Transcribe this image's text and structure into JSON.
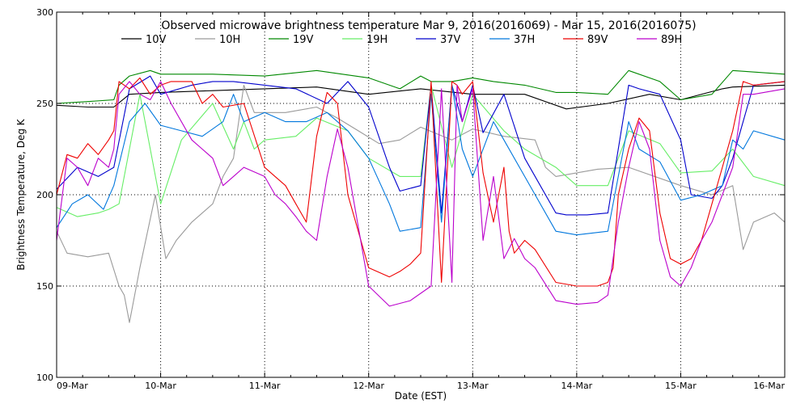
{
  "chart_data": {
    "type": "line",
    "title": "Observed microwave brightness temperature Mar  9, 2016(2016069) - Mar 15, 2016(2016075)",
    "xlabel": "Date (EST)",
    "ylabel": "Brightness Temperature, Deg K",
    "ylim": [
      100,
      300
    ],
    "xlim": [
      0,
      7
    ],
    "y_ticks": [
      100,
      150,
      200,
      250,
      300
    ],
    "y_tick_labels": [
      "100",
      "150",
      "200",
      "250",
      "300"
    ],
    "x_ticks": [
      0,
      1,
      2,
      3,
      4,
      5,
      6,
      7
    ],
    "x_tick_labels": [
      "09-Mar",
      "10-Mar",
      "11-Mar",
      "12-Mar",
      "13-Mar",
      "14-Mar",
      "15-Mar",
      "16-Mar"
    ],
    "grid": true,
    "legend_position": "top",
    "colors": {
      "10V": "#000000",
      "10H": "#9a9a9a",
      "19V": "#008800",
      "19H": "#66ee66",
      "37V": "#0000cc",
      "37H": "#0077dd",
      "89V": "#ee0000",
      "89H": "#bb00cc"
    },
    "series": [
      {
        "name": "10V",
        "color": "#000000",
        "x": [
          0,
          0.3,
          0.55,
          0.7,
          1.0,
          1.5,
          2.0,
          2.5,
          3.0,
          3.5,
          4.0,
          4.5,
          4.9,
          5.3,
          5.7,
          6.0,
          6.4,
          6.5,
          7.0
        ],
        "y": [
          249,
          248,
          248,
          255,
          256,
          257,
          258,
          259,
          255,
          258,
          255,
          255,
          247,
          250,
          255,
          252,
          258,
          259,
          260
        ]
      },
      {
        "name": "10H",
        "color": "#9a9a9a",
        "x": [
          0,
          0.1,
          0.3,
          0.5,
          0.6,
          0.65,
          0.7,
          0.8,
          0.95,
          1.05,
          1.15,
          1.3,
          1.5,
          1.6,
          1.7,
          1.8,
          1.9,
          2.0,
          2.2,
          2.5,
          2.7,
          2.9,
          3.1,
          3.3,
          3.5,
          3.8,
          4.0,
          4.3,
          4.6,
          4.7,
          4.8,
          5.0,
          5.2,
          5.5,
          6.0,
          6.3,
          6.5,
          6.6,
          6.7,
          6.9,
          7.0
        ],
        "y": [
          180,
          168,
          166,
          168,
          150,
          145,
          130,
          160,
          200,
          165,
          175,
          185,
          195,
          210,
          220,
          260,
          245,
          245,
          245,
          248,
          242,
          235,
          228,
          230,
          237,
          230,
          236,
          232,
          230,
          215,
          210,
          212,
          214,
          215,
          205,
          200,
          205,
          170,
          185,
          190,
          185
        ]
      },
      {
        "name": "19V",
        "color": "#008800",
        "x": [
          0,
          0.3,
          0.55,
          0.6,
          0.7,
          0.9,
          1.0,
          1.5,
          2.0,
          2.5,
          3.0,
          3.3,
          3.5,
          3.6,
          3.8,
          4.0,
          4.2,
          4.5,
          4.8,
          5.0,
          5.3,
          5.5,
          5.8,
          6.0,
          6.3,
          6.5,
          7.0
        ],
        "y": [
          250,
          251,
          252,
          260,
          265,
          268,
          266,
          266,
          265,
          268,
          264,
          258,
          265,
          262,
          262,
          264,
          262,
          260,
          256,
          256,
          255,
          268,
          262,
          252,
          255,
          268,
          266
        ]
      },
      {
        "name": "19H",
        "color": "#66ee66",
        "x": [
          0,
          0.2,
          0.4,
          0.5,
          0.6,
          0.8,
          1.0,
          1.2,
          1.5,
          1.7,
          1.8,
          1.9,
          2.0,
          2.3,
          2.5,
          2.8,
          3.0,
          3.3,
          3.5,
          3.6,
          3.8,
          4.0,
          4.3,
          4.5,
          4.8,
          5.0,
          5.3,
          5.5,
          5.8,
          6.0,
          6.3,
          6.5,
          6.7,
          7.0
        ],
        "y": [
          193,
          188,
          190,
          192,
          195,
          255,
          195,
          230,
          250,
          225,
          240,
          225,
          230,
          232,
          242,
          235,
          220,
          210,
          210,
          260,
          215,
          255,
          235,
          225,
          215,
          205,
          205,
          235,
          228,
          212,
          213,
          225,
          210,
          205
        ]
      },
      {
        "name": "37V",
        "color": "#0000cc",
        "x": [
          0,
          0.2,
          0.4,
          0.55,
          0.7,
          0.9,
          1.0,
          1.3,
          1.5,
          1.7,
          2.0,
          2.3,
          2.6,
          2.8,
          3.0,
          3.2,
          3.3,
          3.5,
          3.6,
          3.7,
          3.8,
          3.9,
          4.0,
          4.1,
          4.3,
          4.5,
          4.8,
          4.9,
          5.1,
          5.3,
          5.5,
          5.6,
          5.8,
          6.0,
          6.1,
          6.3,
          6.4,
          6.5,
          6.7,
          7.0
        ],
        "y": [
          203,
          215,
          210,
          215,
          258,
          265,
          255,
          260,
          262,
          262,
          260,
          258,
          250,
          262,
          248,
          215,
          202,
          205,
          260,
          190,
          260,
          240,
          260,
          234,
          255,
          220,
          190,
          189,
          189,
          190,
          260,
          258,
          255,
          230,
          200,
          198,
          205,
          220,
          260,
          262
        ]
      },
      {
        "name": "37H",
        "color": "#0077dd",
        "x": [
          0,
          0.15,
          0.3,
          0.45,
          0.55,
          0.7,
          0.85,
          1.0,
          1.2,
          1.4,
          1.6,
          1.7,
          1.8,
          2.0,
          2.2,
          2.4,
          2.6,
          2.8,
          3.0,
          3.2,
          3.3,
          3.5,
          3.6,
          3.7,
          3.8,
          3.9,
          4.0,
          4.2,
          4.3,
          4.5,
          4.8,
          5.0,
          5.3,
          5.5,
          5.6,
          5.8,
          6.0,
          6.2,
          6.4,
          6.5,
          6.6,
          6.7,
          7.0
        ],
        "y": [
          182,
          195,
          200,
          192,
          205,
          240,
          250,
          238,
          235,
          232,
          240,
          255,
          240,
          245,
          240,
          240,
          245,
          235,
          220,
          195,
          180,
          182,
          255,
          185,
          260,
          225,
          210,
          240,
          230,
          210,
          180,
          178,
          180,
          240,
          225,
          218,
          197,
          200,
          205,
          230,
          225,
          235,
          230
        ]
      },
      {
        "name": "89V",
        "color": "#ee0000",
        "x": [
          0,
          0.1,
          0.2,
          0.3,
          0.4,
          0.5,
          0.55,
          0.6,
          0.7,
          0.8,
          0.9,
          1.0,
          1.1,
          1.3,
          1.4,
          1.5,
          1.6,
          1.8,
          2.0,
          2.1,
          2.2,
          2.3,
          2.4,
          2.5,
          2.6,
          2.7,
          2.8,
          3.0,
          3.2,
          3.3,
          3.4,
          3.5,
          3.6,
          3.7,
          3.8,
          3.85,
          3.9,
          4.0,
          4.1,
          4.2,
          4.3,
          4.35,
          4.4,
          4.5,
          4.6,
          4.8,
          5.0,
          5.2,
          5.3,
          5.35,
          5.4,
          5.5,
          5.6,
          5.7,
          5.8,
          5.9,
          6.0,
          6.1,
          6.2,
          6.3,
          6.4,
          6.5,
          6.6,
          6.7,
          7.0
        ],
        "y": [
          200,
          222,
          220,
          228,
          222,
          230,
          235,
          262,
          258,
          264,
          255,
          260,
          262,
          262,
          250,
          255,
          248,
          250,
          215,
          210,
          205,
          195,
          185,
          232,
          256,
          250,
          200,
          160,
          155,
          158,
          162,
          168,
          262,
          152,
          262,
          260,
          255,
          262,
          212,
          185,
          215,
          180,
          168,
          175,
          170,
          152,
          150,
          150,
          152,
          160,
          200,
          225,
          242,
          235,
          190,
          165,
          162,
          165,
          175,
          195,
          215,
          235,
          262,
          260,
          262
        ]
      },
      {
        "name": "89H",
        "color": "#bb00cc",
        "x": [
          0,
          0.1,
          0.2,
          0.3,
          0.4,
          0.5,
          0.55,
          0.6,
          0.7,
          0.8,
          0.9,
          1.0,
          1.1,
          1.3,
          1.4,
          1.5,
          1.6,
          1.7,
          1.8,
          2.0,
          2.1,
          2.2,
          2.3,
          2.4,
          2.5,
          2.6,
          2.7,
          2.8,
          3.0,
          3.2,
          3.4,
          3.6,
          3.7,
          3.8,
          3.85,
          3.9,
          4.0,
          4.1,
          4.2,
          4.3,
          4.4,
          4.5,
          4.6,
          4.8,
          5.0,
          5.2,
          5.3,
          5.4,
          5.5,
          5.6,
          5.7,
          5.8,
          5.9,
          6.0,
          6.1,
          6.2,
          6.3,
          6.4,
          6.5,
          6.6,
          6.7,
          7.0
        ],
        "y": [
          175,
          220,
          215,
          205,
          220,
          215,
          225,
          255,
          262,
          255,
          252,
          262,
          250,
          230,
          225,
          220,
          205,
          210,
          215,
          210,
          200,
          195,
          188,
          180,
          175,
          210,
          236,
          215,
          150,
          139,
          142,
          150,
          258,
          152,
          260,
          240,
          258,
          175,
          210,
          165,
          176,
          165,
          160,
          142,
          140,
          141,
          145,
          185,
          215,
          240,
          225,
          175,
          155,
          150,
          160,
          175,
          185,
          200,
          215,
          255,
          255,
          258
        ]
      }
    ]
  }
}
